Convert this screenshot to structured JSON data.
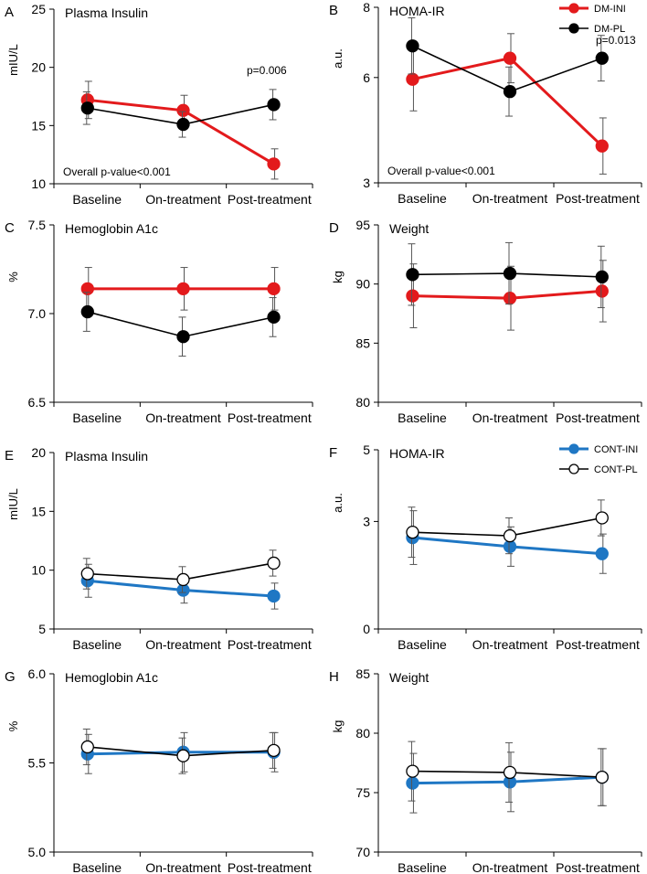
{
  "colors": {
    "dm_ini": "#e31a1c",
    "dm_pl": "#000000",
    "cont_ini": "#1f77c4",
    "cont_pl": "#000000"
  },
  "legends": {
    "dm": [
      {
        "label": "DM-INI",
        "color": "#e31a1c",
        "fill": "#e31a1c"
      },
      {
        "label": "DM-PL",
        "color": "#000000",
        "fill": "#000000"
      }
    ],
    "cont": [
      {
        "label": "CONT-INI",
        "color": "#1f77c4",
        "fill": "#1f77c4"
      },
      {
        "label": "CONT-PL",
        "color": "#000000",
        "fill": "#ffffff"
      }
    ]
  },
  "chart_data": [
    {
      "letter": "A",
      "type": "line",
      "title": "Plasma Insulin",
      "ylabel": "mIU/L",
      "ylim": [
        10,
        25
      ],
      "yticks": [
        "10",
        "15",
        "20",
        "25"
      ],
      "categories": [
        "Baseline",
        "On-treatment",
        "Post-treatment"
      ],
      "series": [
        {
          "name": "DM-INI",
          "values": [
            17.2,
            16.3,
            11.7
          ],
          "err": [
            1.6,
            1.3,
            1.3
          ]
        },
        {
          "name": "DM-PL",
          "values": [
            16.5,
            15.1,
            16.8
          ],
          "err": [
            1.4,
            1.1,
            1.3
          ]
        }
      ],
      "annotations": [
        "p=0.006",
        "Overall p-value<0.001"
      ]
    },
    {
      "letter": "B",
      "type": "line",
      "title": "HOMA-IR",
      "ylabel": "a.u.",
      "ylim": [
        3,
        8
      ],
      "yticks": [
        "3",
        "6",
        "8"
      ],
      "categories": [
        "Baseline",
        "On-treatment",
        "Post-treatment"
      ],
      "series": [
        {
          "name": "DM-INI",
          "values": [
            5.95,
            6.55,
            4.05
          ],
          "err": [
            0.9,
            0.7,
            0.8
          ]
        },
        {
          "name": "DM-PL",
          "values": [
            6.9,
            5.6,
            6.55
          ],
          "err": [
            0.8,
            0.7,
            0.65
          ]
        }
      ],
      "annotations": [
        "p=0.013",
        "Overall p-value<0.001"
      ]
    },
    {
      "letter": "C",
      "type": "line",
      "title": "Hemoglobin A1c",
      "ylabel": "%",
      "ylim": [
        6.5,
        7.5
      ],
      "yticks": [
        "6.5",
        "7.0",
        "7.5"
      ],
      "categories": [
        "Baseline",
        "On-treatment",
        "Post-treatment"
      ],
      "series": [
        {
          "name": "DM-INI",
          "values": [
            7.14,
            7.14,
            7.14
          ],
          "err": [
            0.12,
            0.12,
            0.12
          ]
        },
        {
          "name": "DM-PL",
          "values": [
            7.01,
            6.87,
            6.98
          ],
          "err": [
            0.11,
            0.11,
            0.11
          ]
        }
      ],
      "annotations": []
    },
    {
      "letter": "D",
      "type": "line",
      "title": "Weight",
      "ylabel": "kg",
      "ylim": [
        80,
        95
      ],
      "yticks": [
        "80",
        "85",
        "90",
        "95"
      ],
      "categories": [
        "Baseline",
        "On-treatment",
        "Post-treatment"
      ],
      "series": [
        {
          "name": "DM-INI",
          "values": [
            89.0,
            88.8,
            89.4
          ],
          "err": [
            2.7,
            2.7,
            2.6
          ]
        },
        {
          "name": "DM-PL",
          "values": [
            90.8,
            90.9,
            90.6
          ],
          "err": [
            2.6,
            2.6,
            2.6
          ]
        }
      ],
      "annotations": []
    },
    {
      "letter": "E",
      "type": "line",
      "title": "Plasma Insulin",
      "ylabel": "mIU/L",
      "ylim": [
        5,
        20
      ],
      "yticks": [
        "5",
        "10",
        "15",
        "20"
      ],
      "categories": [
        "Baseline",
        "On-treatment",
        "Post-treatment"
      ],
      "series": [
        {
          "name": "CONT-INI",
          "values": [
            9.1,
            8.3,
            7.8
          ],
          "err": [
            1.4,
            1.1,
            1.1
          ]
        },
        {
          "name": "CONT-PL",
          "values": [
            9.7,
            9.2,
            10.6
          ],
          "err": [
            1.3,
            1.1,
            1.1
          ]
        }
      ],
      "annotations": []
    },
    {
      "letter": "F",
      "type": "line",
      "title": "HOMA-IR",
      "ylabel": "a.u.",
      "ylim": [
        0,
        5
      ],
      "yticks": [
        "0",
        "3",
        "5"
      ],
      "categories": [
        "Baseline",
        "On-treatment",
        "Post-treatment"
      ],
      "series": [
        {
          "name": "CONT-INI",
          "values": [
            2.55,
            2.3,
            2.1
          ],
          "err": [
            0.75,
            0.55,
            0.55
          ]
        },
        {
          "name": "CONT-PL",
          "values": [
            2.7,
            2.6,
            3.1
          ],
          "err": [
            0.7,
            0.5,
            0.5
          ]
        }
      ],
      "annotations": []
    },
    {
      "letter": "G",
      "type": "line",
      "title": "Hemoglobin A1c",
      "ylabel": "%",
      "ylim": [
        5.0,
        6.0
      ],
      "yticks": [
        "5.0",
        "5.5",
        "6.0"
      ],
      "categories": [
        "Baseline",
        "On-treatment",
        "Post-treatment"
      ],
      "series": [
        {
          "name": "CONT-INI",
          "values": [
            5.55,
            5.56,
            5.56
          ],
          "err": [
            0.11,
            0.11,
            0.11
          ]
        },
        {
          "name": "CONT-PL",
          "values": [
            5.59,
            5.54,
            5.57
          ],
          "err": [
            0.1,
            0.1,
            0.1
          ]
        }
      ],
      "annotations": []
    },
    {
      "letter": "H",
      "type": "line",
      "title": "Weight",
      "ylabel": "kg",
      "ylim": [
        70,
        85
      ],
      "yticks": [
        "70",
        "75",
        "80",
        "85"
      ],
      "categories": [
        "Baseline",
        "On-treatment",
        "Post-treatment"
      ],
      "series": [
        {
          "name": "CONT-INI",
          "values": [
            75.8,
            75.9,
            76.3
          ],
          "err": [
            2.5,
            2.5,
            2.4
          ]
        },
        {
          "name": "CONT-PL",
          "values": [
            76.8,
            76.7,
            76.3
          ],
          "err": [
            2.5,
            2.5,
            2.4
          ]
        }
      ],
      "annotations": []
    }
  ]
}
